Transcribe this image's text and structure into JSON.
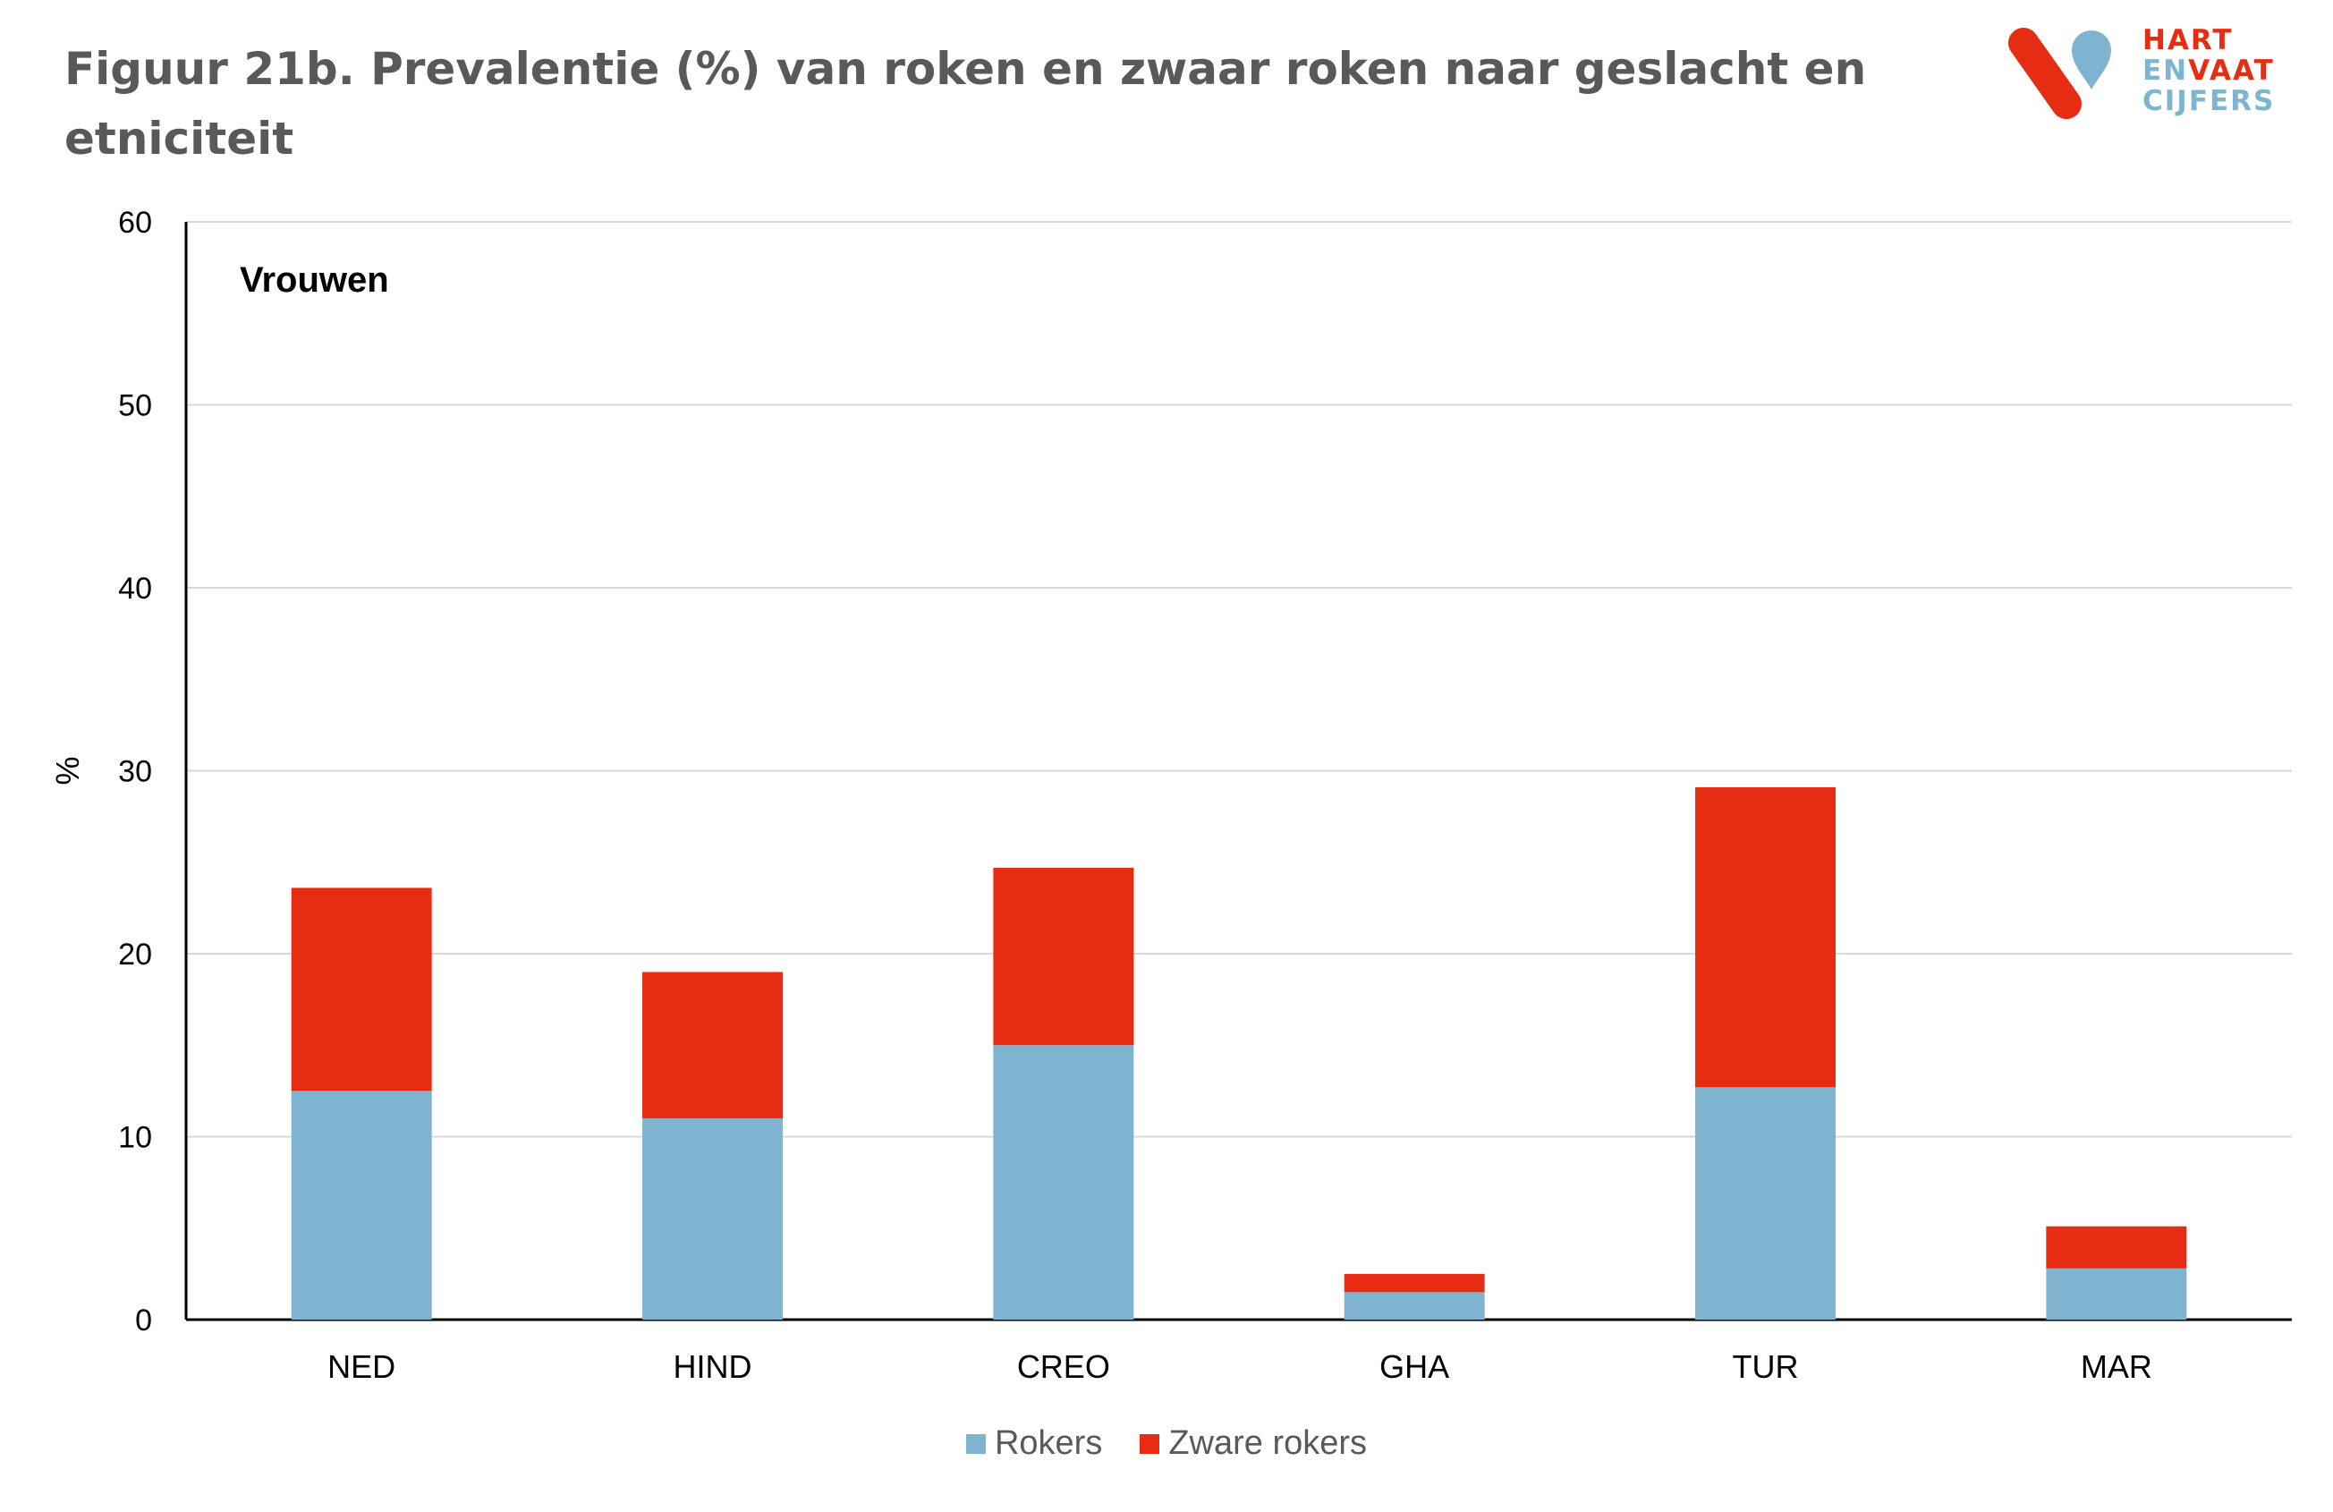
{
  "title": "Figuur 21b. Prevalentie (%) van roken en zwaar roken naar geslacht en etniciteit",
  "logo": {
    "line1": "HART",
    "line2a": "EN",
    "line2b": "VAAT",
    "line3": "CIJFERS",
    "red": "#E62D14",
    "blue": "#7FB4D1"
  },
  "chart_data": {
    "type": "bar",
    "stacked": true,
    "panel_label": "Vrouwen",
    "categories": [
      "NED",
      "HIND",
      "CREO",
      "GHA",
      "TUR",
      "MAR"
    ],
    "series": [
      {
        "name": "Rokers",
        "color": "#7FB4D1",
        "values": [
          12.5,
          11.0,
          15.0,
          1.5,
          12.7,
          2.8
        ]
      },
      {
        "name": "Zware rokers",
        "color": "#E62D14",
        "values": [
          11.1,
          8.0,
          9.7,
          1.0,
          16.4,
          2.3
        ]
      }
    ],
    "ylabel": "%",
    "ylim": [
      0,
      60
    ],
    "yticks": [
      0,
      10,
      20,
      30,
      40,
      50,
      60
    ],
    "grid": true,
    "legend_position": "bottom"
  }
}
